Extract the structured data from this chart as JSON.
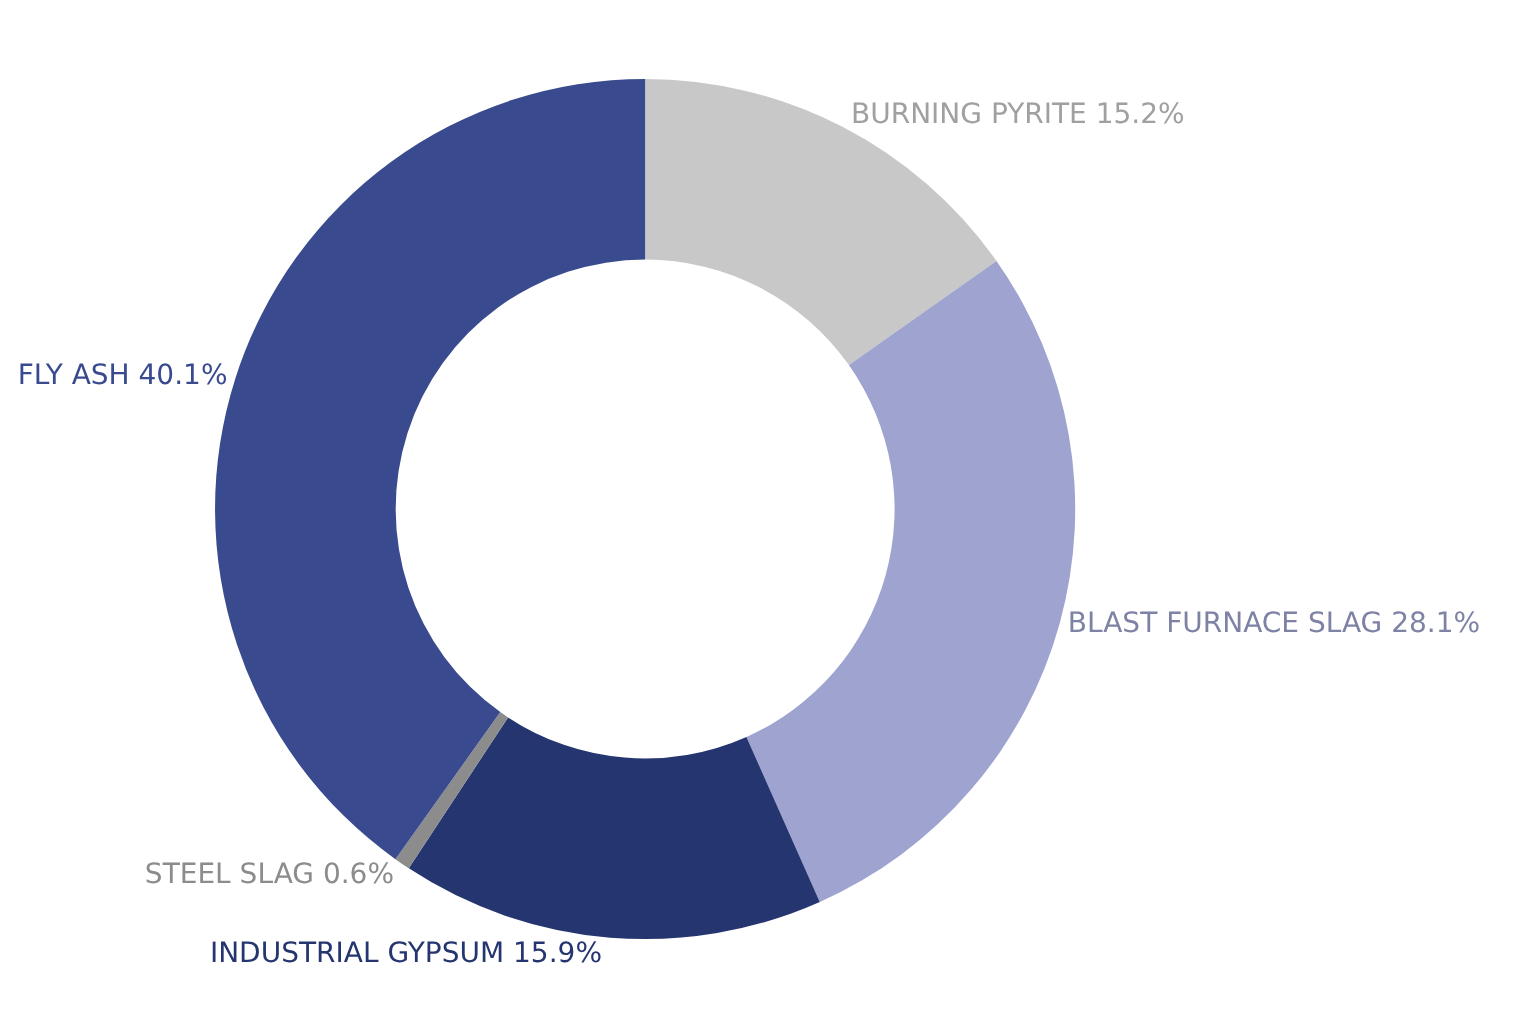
{
  "chart_data": {
    "type": "donut",
    "categories": [
      "BURNING PYRITE",
      "BLAST FURNACE SLAG",
      "INDUSTRIAL GYPSUM",
      "STEEL SLAG",
      "FLY ASH"
    ],
    "values": [
      15.2,
      28.1,
      15.9,
      0.6,
      40.1
    ],
    "value_labels": [
      "15.2%",
      "28.1%",
      "15.9%",
      "0.6%",
      "40.1%"
    ],
    "colors": [
      "#c8c8c8",
      "#9ea3cf",
      "#25356f",
      "#8c8c8c",
      "#394b8e"
    ],
    "legend": false
  }
}
